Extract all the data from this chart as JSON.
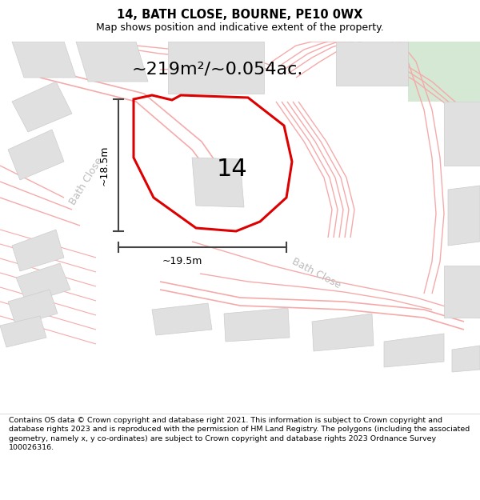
{
  "title_line1": "14, BATH CLOSE, BOURNE, PE10 0WX",
  "title_line2": "Map shows position and indicative extent of the property.",
  "area_label": "~219m²/~0.054ac.",
  "plot_number": "14",
  "dim_height": "~18.5m",
  "dim_width": "~19.5m",
  "footer_text": "Contains OS data © Crown copyright and database right 2021. This information is subject to Crown copyright and database rights 2023 and is reproduced with the permission of HM Land Registry. The polygons (including the associated geometry, namely x, y co-ordinates) are subject to Crown copyright and database rights 2023 Ordnance Survey 100026316.",
  "bg_color": "#ffffff",
  "map_bg": "#ffffff",
  "plot_outline_color": "#dd0000",
  "road_line_color": "#f5aaaa",
  "building_color": "#e0e0e0",
  "building_edge": "#cccccc",
  "green_color": "#d4e8d4",
  "dim_line_color": "#444444",
  "road_label_color": "#bbbbbb",
  "title_fontsize": 10.5,
  "subtitle_fontsize": 9,
  "area_fontsize": 16,
  "plot_label_fontsize": 22,
  "dim_fontsize": 9,
  "road_label_fontsize": 9,
  "footer_fontsize": 6.8
}
